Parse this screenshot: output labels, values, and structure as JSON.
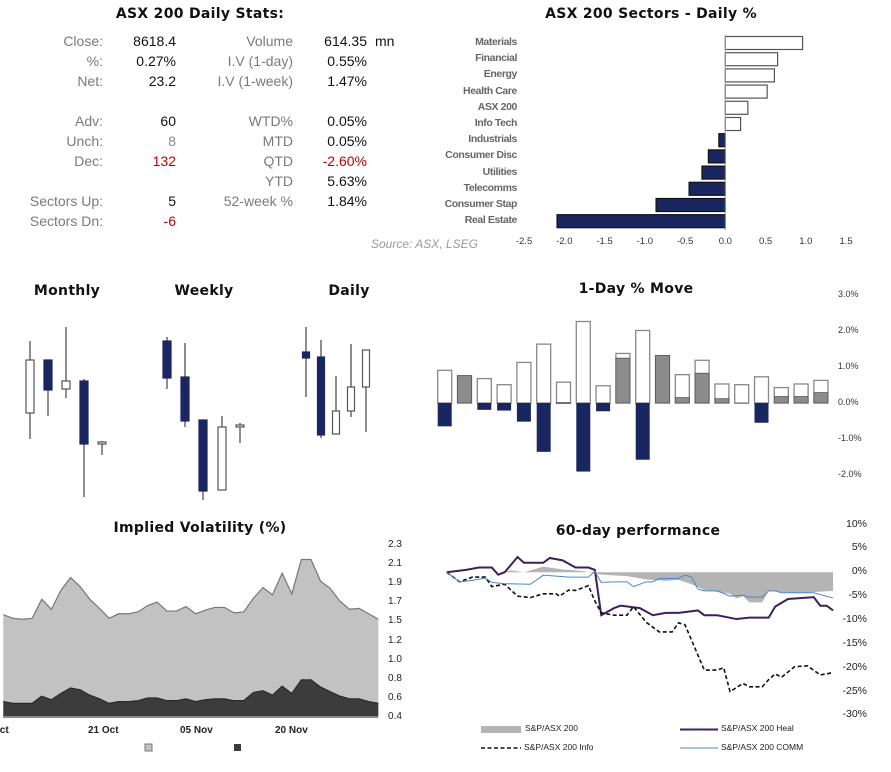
{
  "stats": {
    "title": "ASX 200 Daily Stats:",
    "left": [
      {
        "label": "Close:",
        "value": "8618.4"
      },
      {
        "label": "%:",
        "value": "0.27%"
      },
      {
        "label": "Net:",
        "value": "23.2"
      },
      {
        "label": "Adv:",
        "value": "60"
      },
      {
        "label": "Unch:",
        "value": "8"
      },
      {
        "label": "Dec:",
        "value": "132"
      },
      {
        "label": "Sectors Up:",
        "value": "5"
      },
      {
        "label": "Sectors Dn:",
        "value": "-6"
      }
    ],
    "right": [
      {
        "label": "Volume",
        "value": "614.35",
        "unit": "mn"
      },
      {
        "label": "I.V (1-day)",
        "value": "0.55%"
      },
      {
        "label": "I.V (1-week)",
        "value": "1.47%"
      },
      {
        "label": "WTD%",
        "value": "0.05%"
      },
      {
        "label": "MTD",
        "value": "0.05%"
      },
      {
        "label": "QTD",
        "value": "-2.60%"
      },
      {
        "label": "YTD",
        "value": "5.63%"
      },
      {
        "label": "52-week %",
        "value": "1.84%"
      }
    ],
    "negative_color": "#c00000"
  },
  "source": "Source: ASX, LSEG",
  "colors": {
    "navy": "#1a2660",
    "gray": "#8c8c8c",
    "purple": "#3d1f5c",
    "blue": "#4a86c8"
  },
  "chart_data": [
    {
      "id": "sectors",
      "type": "bar",
      "orientation": "horizontal",
      "title": "ASX 200 Sectors - Daily %",
      "categories": [
        "Materials",
        "Financial",
        "Energy",
        "Health Care",
        "ASX 200",
        "Info Tech",
        "Industrials",
        "Consumer Disc",
        "Utilities",
        "Telecomms",
        "Consumer Stap",
        "Real Estate"
      ],
      "values": [
        0.96,
        0.65,
        0.61,
        0.52,
        0.28,
        0.19,
        -0.08,
        -0.21,
        -0.29,
        -0.45,
        -0.86,
        -2.09
      ],
      "xlim": [
        -2.5,
        1.5
      ],
      "ticks": [
        "-2.5",
        "-2.0",
        "-1.5",
        "-1.0",
        "-0.5",
        "0.0",
        "0.5",
        "1.0",
        "1.5"
      ]
    },
    {
      "id": "candles",
      "type": "candlestick",
      "panels": [
        {
          "title": "Monthly",
          "ohlc": [
            [
              87,
              159,
              61,
              140
            ],
            [
              140,
              140,
              84,
              110
            ],
            [
              111,
              173,
              102,
              119
            ],
            [
              119,
              121,
              3,
              56
            ],
            [
              56,
              59,
              45,
              58
            ]
          ]
        },
        {
          "title": "Weekly",
          "ohlc": [
            [
              159,
              163,
              111,
              122
            ],
            [
              123,
              157,
              73,
              79
            ],
            [
              80,
              80,
              0,
              9
            ],
            [
              10,
              84,
              10,
              73
            ],
            [
              73,
              77,
              57,
              75
            ]
          ]
        },
        {
          "title": "Daily",
          "ohlc": [
            [
              148,
              173,
              103,
              142
            ],
            [
              143,
              160,
              62,
              65
            ],
            [
              66,
              124,
              66,
              89
            ],
            [
              89,
              156,
              83,
              113
            ],
            [
              113,
              150,
              68,
              150
            ]
          ]
        }
      ]
    },
    {
      "id": "one-day",
      "type": "bar",
      "title": "1-Day % Move",
      "series": [
        {
          "values": [
            0.91,
            0.76,
            0.68,
            0.51,
            1.13,
            1.64,
            0.58,
            2.27,
            0.48,
            1.38,
            2.02,
            1.32,
            0.79,
            1.19,
            0.53,
            0.51,
            0.73,
            0.43,
            0.53,
            0.63
          ]
        },
        {
          "values": [
            -0.65,
            0.76,
            -0.19,
            -0.21,
            -0.52,
            -1.36,
            0.01,
            -1.91,
            -0.23,
            1.25,
            -1.58,
            1.32,
            0.15,
            0.83,
            0.12,
            -0.01,
            -0.55,
            0.18,
            0.18,
            0.29
          ]
        }
      ],
      "ylim": [
        -2.0,
        3.0
      ],
      "ticks": [
        "3.0%",
        "2.0%",
        "1.0%",
        "0.0%",
        "-1.0%",
        "-2.0%"
      ]
    },
    {
      "id": "iv",
      "type": "area",
      "title": "Implied Volatility (%)",
      "series": [
        {
          "values": [
            1.53,
            1.49,
            1.48,
            1.49,
            1.7,
            1.59,
            1.8,
            1.94,
            1.84,
            1.7,
            1.6,
            1.49,
            1.54,
            1.54,
            1.56,
            1.63,
            1.67,
            1.57,
            1.57,
            1.62,
            1.54,
            1.58,
            1.61,
            1.61,
            1.55,
            1.56,
            1.71,
            1.83,
            1.75,
            1.99,
            1.76,
            2.14,
            2.14,
            1.9,
            1.82,
            1.68,
            1.59,
            1.6,
            1.54,
            1.48
          ]
        },
        {
          "values": [
            0.57,
            0.55,
            0.55,
            0.55,
            0.63,
            0.59,
            0.66,
            0.72,
            0.7,
            0.64,
            0.6,
            0.55,
            0.57,
            0.57,
            0.58,
            0.61,
            0.61,
            0.58,
            0.58,
            0.6,
            0.57,
            0.59,
            0.6,
            0.6,
            0.58,
            0.58,
            0.67,
            0.69,
            0.64,
            0.74,
            0.66,
            0.81,
            0.81,
            0.73,
            0.68,
            0.63,
            0.6,
            0.6,
            0.57,
            0.55
          ]
        }
      ],
      "ylim": [
        0.4,
        2.3
      ],
      "yticks": [
        "2.3",
        "2.1",
        "1.9",
        "1.7",
        "1.5",
        "1.2",
        "1.0",
        "0.8",
        "0.6",
        "0.4"
      ],
      "xticks": [
        "Oct",
        "21 Oct",
        "05 Nov",
        "20 Nov"
      ]
    },
    {
      "id": "perf",
      "type": "line",
      "title": "60-day performance",
      "xlim": [
        0,
        60
      ],
      "ylim": [
        -30,
        10
      ],
      "yticks": [
        "10%",
        "5%",
        "0%",
        "-5%",
        "-10%",
        "-15%",
        "-20%",
        "-25%",
        "-30%"
      ],
      "series": [
        {
          "name": "S&P/ASX 200",
          "style": "area",
          "points": [
            [
              0,
              0
            ],
            [
              8,
              0
            ],
            [
              10,
              0.4
            ],
            [
              12,
              0
            ],
            [
              15,
              1.2
            ],
            [
              18,
              0.6
            ],
            [
              21,
              0.3
            ],
            [
              22,
              0
            ],
            [
              24,
              -0.5
            ],
            [
              28,
              -0.8
            ],
            [
              31,
              -1.5
            ],
            [
              34,
              -1.8
            ],
            [
              36,
              -1.6
            ],
            [
              38,
              -2.5
            ],
            [
              40,
              -3.7
            ],
            [
              44,
              -4.5
            ],
            [
              45,
              -5.5
            ],
            [
              46,
              -5
            ],
            [
              47,
              -6.3
            ],
            [
              49,
              -6.3
            ],
            [
              50,
              -3.9
            ],
            [
              54,
              -4.4
            ],
            [
              60,
              -3.9
            ]
          ]
        },
        {
          "name": "S&P/ASX 200 Heal",
          "style": "solid",
          "points": [
            [
              0,
              0
            ],
            [
              3,
              0.5
            ],
            [
              5,
              1
            ],
            [
              7,
              1
            ],
            [
              8,
              -0.5
            ],
            [
              9,
              0
            ],
            [
              11,
              3.2
            ],
            [
              12,
              2
            ],
            [
              15,
              2
            ],
            [
              16,
              3
            ],
            [
              18,
              2.5
            ],
            [
              20,
              1
            ],
            [
              22,
              1
            ],
            [
              23,
              0.5
            ],
            [
              24,
              -9
            ],
            [
              26,
              -7.5
            ],
            [
              27,
              -7
            ],
            [
              30,
              -7.5
            ],
            [
              32,
              -9
            ],
            [
              34,
              -8.5
            ],
            [
              36,
              -8.5
            ],
            [
              39,
              -8
            ],
            [
              40,
              -9
            ],
            [
              42,
              -9
            ],
            [
              45,
              -9.8
            ],
            [
              47,
              -9.5
            ],
            [
              50,
              -9.5
            ],
            [
              51,
              -7.2
            ],
            [
              53,
              -5.6
            ],
            [
              57,
              -5.2
            ],
            [
              58,
              -7
            ],
            [
              59,
              -7
            ],
            [
              60,
              -8
            ]
          ]
        },
        {
          "name": "S&P/ASX 200 Info",
          "style": "dashed",
          "points": [
            [
              0,
              0
            ],
            [
              2,
              -2
            ],
            [
              4,
              -1
            ],
            [
              6,
              -1
            ],
            [
              7,
              -3
            ],
            [
              9,
              -2.5
            ],
            [
              11,
              -5
            ],
            [
              13,
              -5.3
            ],
            [
              15,
              -4.5
            ],
            [
              17,
              -4.5
            ],
            [
              17.5,
              -5
            ],
            [
              19,
              -3.7
            ],
            [
              20,
              -3.8
            ],
            [
              22,
              -2.8
            ],
            [
              23,
              -6
            ],
            [
              24,
              -8.5
            ],
            [
              26,
              -9
            ],
            [
              28,
              -9
            ],
            [
              29,
              -7.2
            ],
            [
              31,
              -10.5
            ],
            [
              33,
              -12.5
            ],
            [
              35,
              -12.5
            ],
            [
              36,
              -10.6
            ],
            [
              37,
              -11
            ],
            [
              40,
              -20.5
            ],
            [
              42,
              -20.5
            ],
            [
              43,
              -20
            ],
            [
              44,
              -25
            ],
            [
              46,
              -23.3
            ],
            [
              47,
              -24
            ],
            [
              49,
              -24
            ],
            [
              50,
              -22.5
            ],
            [
              51,
              -21.3
            ],
            [
              52,
              -22
            ],
            [
              54,
              -19.8
            ],
            [
              56,
              -19.6
            ],
            [
              58,
              -21.5
            ],
            [
              59,
              -21.3
            ],
            [
              60,
              -21
            ]
          ]
        },
        {
          "name": "S&P/ASX 200 COMM",
          "style": "thin",
          "points": [
            [
              0,
              0
            ],
            [
              2,
              -2
            ],
            [
              4,
              -1.7
            ],
            [
              6,
              -1.2
            ],
            [
              7,
              -2.1
            ],
            [
              9,
              -2.4
            ],
            [
              13,
              -2.5
            ],
            [
              15,
              -0.6
            ],
            [
              19,
              -1
            ],
            [
              22,
              -1
            ],
            [
              23,
              0.2
            ],
            [
              24,
              -2.1
            ],
            [
              26,
              -2
            ],
            [
              28,
              -2
            ],
            [
              29,
              -3
            ],
            [
              31,
              -2
            ],
            [
              32,
              -2
            ],
            [
              33,
              -1.3
            ],
            [
              36,
              -1.3
            ],
            [
              37,
              -0.6
            ],
            [
              38,
              -1
            ],
            [
              39,
              -3.5
            ],
            [
              40,
              -3.9
            ],
            [
              42,
              -3.9
            ],
            [
              44,
              -5
            ],
            [
              46,
              -4.8
            ],
            [
              47,
              -5.2
            ],
            [
              49,
              -5.2
            ],
            [
              50,
              -3.9
            ],
            [
              51,
              -3.9
            ],
            [
              52,
              -4.3
            ],
            [
              57,
              -4.3
            ],
            [
              60,
              -5.4
            ]
          ]
        }
      ]
    }
  ]
}
